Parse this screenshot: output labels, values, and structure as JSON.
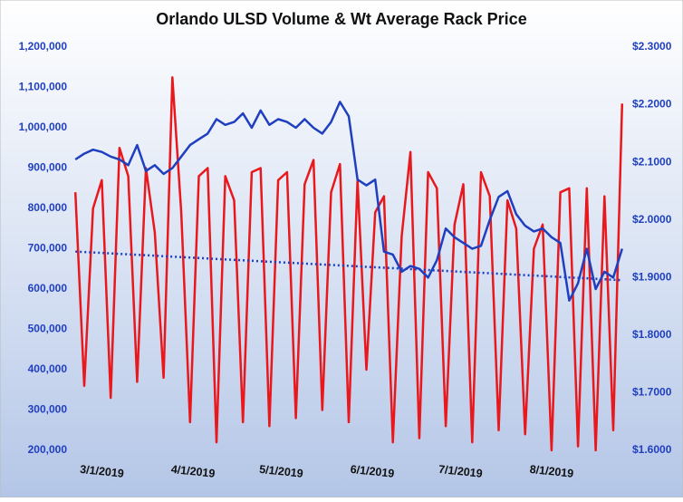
{
  "chart_data": {
    "type": "line",
    "title": "Orlando ULSD Volume & Wt Average Rack Price",
    "x": [
      "2/20/2019",
      "2/23/2019",
      "2/26/2019",
      "3/1/2019",
      "3/4/2019",
      "3/7/2019",
      "3/10/2019",
      "3/13/2019",
      "3/16/2019",
      "3/19/2019",
      "3/22/2019",
      "3/25/2019",
      "3/28/2019",
      "3/31/2019",
      "4/3/2019",
      "4/6/2019",
      "4/9/2019",
      "4/12/2019",
      "4/15/2019",
      "4/18/2019",
      "4/21/2019",
      "4/24/2019",
      "4/27/2019",
      "4/30/2019",
      "5/3/2019",
      "5/6/2019",
      "5/9/2019",
      "5/12/2019",
      "5/15/2019",
      "5/18/2019",
      "5/21/2019",
      "5/24/2019",
      "5/27/2019",
      "5/30/2019",
      "6/2/2019",
      "6/5/2019",
      "6/8/2019",
      "6/11/2019",
      "6/14/2019",
      "6/17/2019",
      "6/20/2019",
      "6/23/2019",
      "6/26/2019",
      "6/29/2019",
      "7/2/2019",
      "7/5/2019",
      "7/8/2019",
      "7/11/2019",
      "7/14/2019",
      "7/17/2019",
      "7/20/2019",
      "7/23/2019",
      "7/26/2019",
      "7/29/2019",
      "8/1/2019",
      "8/4/2019",
      "8/7/2019",
      "8/10/2019",
      "8/13/2019",
      "8/16/2019",
      "8/19/2019",
      "8/22/2019",
      "8/25/2019"
    ],
    "series": [
      {
        "color": "#e8181c",
        "values": [
          840000,
          360000,
          800000,
          870000,
          330000,
          950000,
          880000,
          370000,
          900000,
          740000,
          380000,
          1125000,
          790000,
          270000,
          880000,
          900000,
          220000,
          880000,
          820000,
          270000,
          890000,
          900000,
          260000,
          870000,
          890000,
          280000,
          860000,
          920000,
          300000,
          840000,
          910000,
          270000,
          870000,
          400000,
          790000,
          830000,
          220000,
          730000,
          940000,
          230000,
          890000,
          850000,
          260000,
          760000,
          860000,
          220000,
          890000,
          830000,
          250000,
          820000,
          750000,
          240000,
          700000,
          760000,
          200000,
          840000,
          850000,
          210000,
          850000,
          200000,
          830000,
          250000,
          1060000
        ]
      },
      {
        "color": "#1f3fbf",
        "axis": "y2",
        "values": [
          2.105,
          2.115,
          2.122,
          2.118,
          2.11,
          2.105,
          2.095,
          2.13,
          2.085,
          2.095,
          2.08,
          2.09,
          2.11,
          2.13,
          2.14,
          2.15,
          2.175,
          2.165,
          2.17,
          2.185,
          2.16,
          2.19,
          2.165,
          2.175,
          2.17,
          2.16,
          2.175,
          2.16,
          2.15,
          2.17,
          2.205,
          2.18,
          2.07,
          2.06,
          2.07,
          1.945,
          1.94,
          1.91,
          1.92,
          1.915,
          1.9,
          1.93,
          1.985,
          1.97,
          1.96,
          1.95,
          1.955,
          2.0,
          2.04,
          2.05,
          2.01,
          1.99,
          1.98,
          1.985,
          1.97,
          1.96,
          1.86,
          1.89,
          1.95,
          1.88,
          1.91,
          1.9,
          1.95
        ]
      }
    ],
    "trendline": {
      "x": [
        "2/20/2019",
        "8/25/2019"
      ],
      "values": [
        693000,
        622000
      ],
      "color": "#1f3fbf"
    },
    "xlim": [
      "2/19/2019",
      "8/26/2019"
    ],
    "xticks": [
      "3/1/2019",
      "4/1/2019",
      "5/1/2019",
      "6/1/2019",
      "7/1/2019",
      "8/1/2019"
    ],
    "ylim": [
      200000,
      1200000
    ],
    "yticks": [
      {
        "value": 200000,
        "label": "200,000"
      },
      {
        "value": 300000,
        "label": "300,000"
      },
      {
        "value": 400000,
        "label": "400,000"
      },
      {
        "value": 500000,
        "label": "500,000"
      },
      {
        "value": 600000,
        "label": "600,000"
      },
      {
        "value": 700000,
        "label": "700,000"
      },
      {
        "value": 800000,
        "label": "800,000"
      },
      {
        "value": 900000,
        "label": "900,000"
      },
      {
        "value": 1000000,
        "label": "1,000,000"
      },
      {
        "value": 1100000,
        "label": "1,100,000"
      },
      {
        "value": 1200000,
        "label": "1,200,000"
      }
    ],
    "y2lim": [
      1.6,
      2.3
    ],
    "y2ticks": [
      {
        "value": 1.6,
        "label": "$1.6000"
      },
      {
        "value": 1.7,
        "label": "$1.7000"
      },
      {
        "value": 1.8,
        "label": "$1.8000"
      },
      {
        "value": 1.9,
        "label": "$1.9000"
      },
      {
        "value": 2.0,
        "label": "$2.0000"
      },
      {
        "value": 2.1,
        "label": "$2.1000"
      },
      {
        "value": 2.2,
        "label": "$2.2000"
      },
      {
        "value": 2.3,
        "label": "$2.3000"
      }
    ]
  }
}
